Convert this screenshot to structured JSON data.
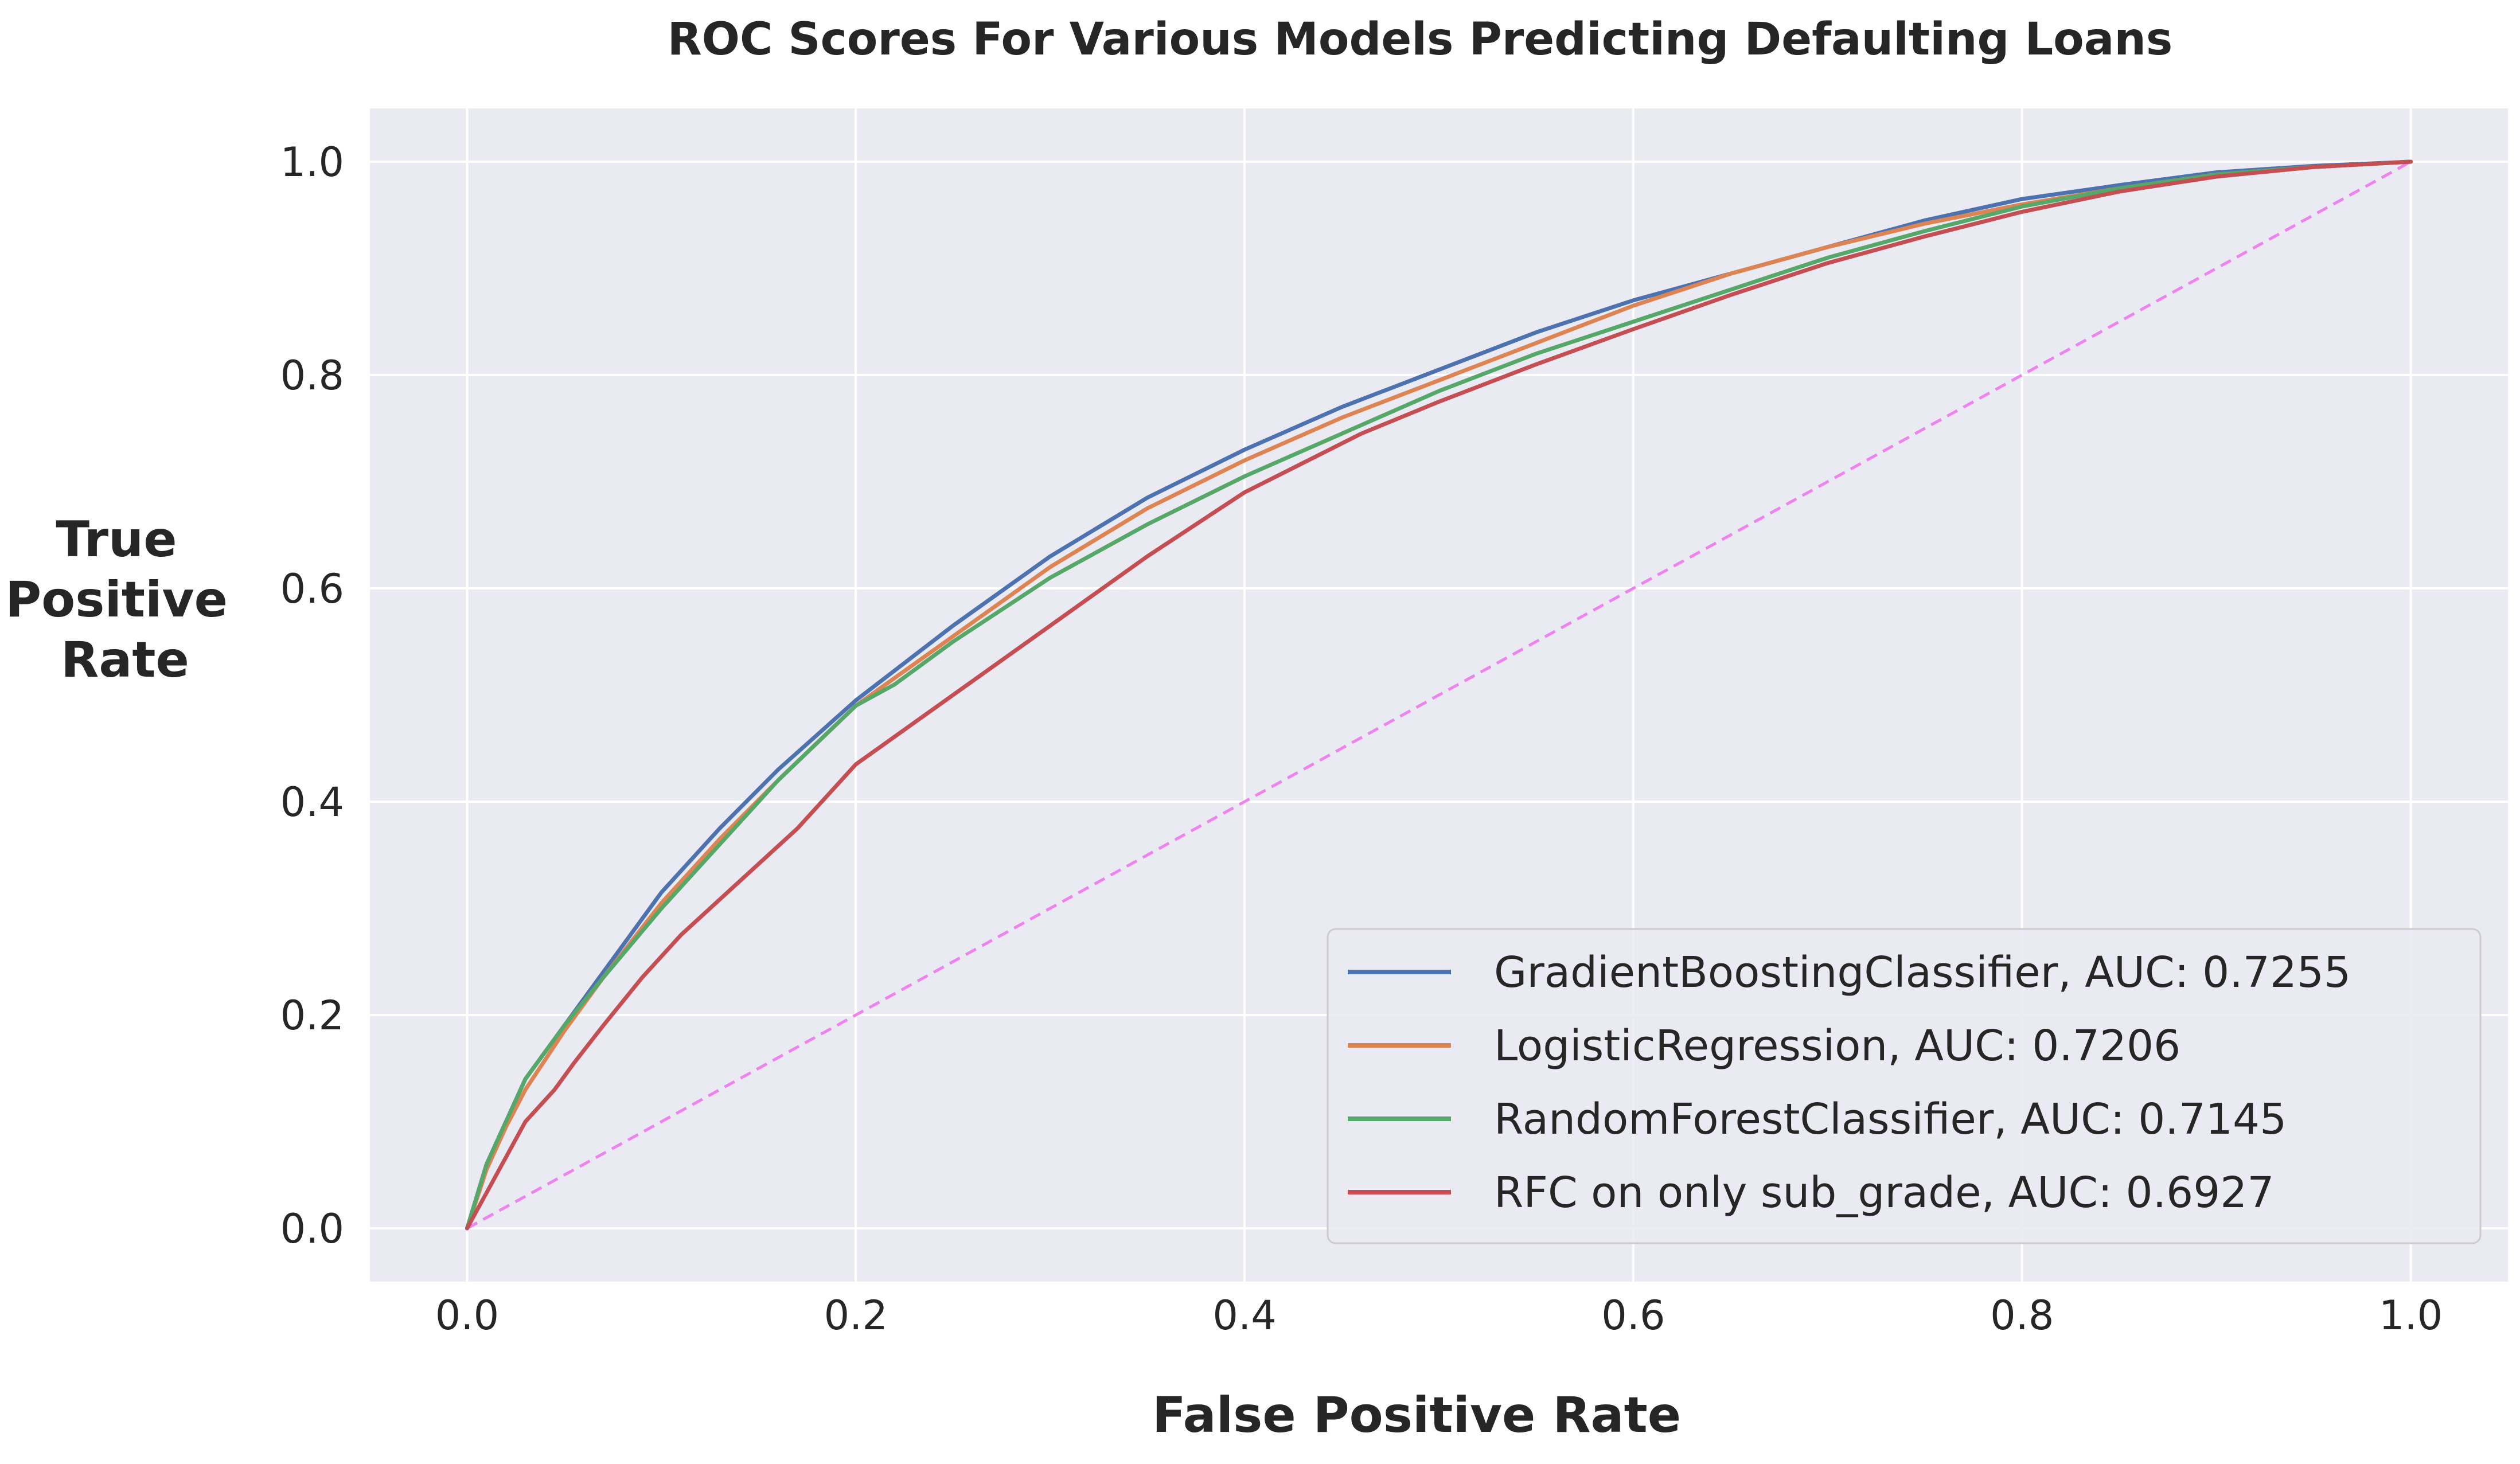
{
  "chart_data": {
    "type": "line",
    "title": "ROC Scores For Various Models Predicting Defaulting Loans",
    "xlabel": "False Positive Rate",
    "ylabel_lines": [
      "True",
      "Positive",
      "Rate"
    ],
    "xlim": [
      -0.05,
      1.05
    ],
    "ylim": [
      -0.05,
      1.05
    ],
    "xticks": [
      "0.0",
      "0.2",
      "0.4",
      "0.6",
      "0.8",
      "1.0"
    ],
    "yticks": [
      "0.0",
      "0.2",
      "0.4",
      "0.6",
      "0.8",
      "1.0"
    ],
    "grid": true,
    "legend_position": "lower-right",
    "colors": {
      "background": "#eaeaf2",
      "grid": "#ffffff",
      "text": "#262626",
      "diagonal": "#ee82ee"
    },
    "series": [
      {
        "name": "GradientBoostingClassifier, AUC: 0.7255",
        "color": "#4c72b0",
        "x": [
          0,
          0.01,
          0.02,
          0.03,
          0.05,
          0.07,
          0.1,
          0.13,
          0.16,
          0.2,
          0.25,
          0.3,
          0.35,
          0.4,
          0.45,
          0.5,
          0.55,
          0.6,
          0.65,
          0.7,
          0.75,
          0.8,
          0.85,
          0.9,
          0.95,
          1.0
        ],
        "y": [
          0,
          0.06,
          0.1,
          0.14,
          0.19,
          0.24,
          0.315,
          0.375,
          0.43,
          0.495,
          0.565,
          0.63,
          0.685,
          0.73,
          0.77,
          0.805,
          0.84,
          0.87,
          0.895,
          0.92,
          0.945,
          0.965,
          0.978,
          0.99,
          0.996,
          1.0
        ]
      },
      {
        "name": "LogisticRegression, AUC: 0.7206",
        "color": "#dd8452",
        "x": [
          0,
          0.01,
          0.02,
          0.03,
          0.05,
          0.07,
          0.1,
          0.13,
          0.16,
          0.2,
          0.25,
          0.3,
          0.35,
          0.4,
          0.45,
          0.5,
          0.55,
          0.6,
          0.65,
          0.7,
          0.75,
          0.8,
          0.85,
          0.9,
          0.95,
          1.0
        ],
        "y": [
          0,
          0.055,
          0.095,
          0.13,
          0.185,
          0.235,
          0.305,
          0.365,
          0.42,
          0.49,
          0.555,
          0.62,
          0.675,
          0.72,
          0.76,
          0.795,
          0.83,
          0.865,
          0.895,
          0.92,
          0.942,
          0.96,
          0.975,
          0.988,
          0.995,
          1.0
        ]
      },
      {
        "name": "RandomForestClassifier, AUC: 0.7145",
        "color": "#55a868",
        "x": [
          0,
          0.01,
          0.02,
          0.03,
          0.05,
          0.07,
          0.1,
          0.13,
          0.16,
          0.18,
          0.2,
          0.22,
          0.25,
          0.3,
          0.35,
          0.4,
          0.45,
          0.5,
          0.55,
          0.6,
          0.65,
          0.7,
          0.75,
          0.8,
          0.85,
          0.9,
          0.95,
          1.0
        ],
        "y": [
          0,
          0.06,
          0.1,
          0.14,
          0.19,
          0.235,
          0.3,
          0.36,
          0.42,
          0.455,
          0.49,
          0.51,
          0.55,
          0.61,
          0.66,
          0.705,
          0.745,
          0.785,
          0.82,
          0.85,
          0.88,
          0.91,
          0.935,
          0.958,
          0.975,
          0.988,
          0.995,
          1.0
        ]
      },
      {
        "name": "RFC on only sub_grade, AUC: 0.6927",
        "color": "#c44e52",
        "x": [
          0,
          0.015,
          0.03,
          0.045,
          0.055,
          0.07,
          0.09,
          0.11,
          0.14,
          0.17,
          0.2,
          0.25,
          0.3,
          0.35,
          0.4,
          0.46,
          0.5,
          0.55,
          0.6,
          0.65,
          0.7,
          0.75,
          0.8,
          0.85,
          0.9,
          0.95,
          1.0
        ],
        "y": [
          0,
          0.05,
          0.1,
          0.13,
          0.155,
          0.19,
          0.235,
          0.275,
          0.325,
          0.375,
          0.435,
          0.5,
          0.565,
          0.63,
          0.69,
          0.745,
          0.775,
          0.81,
          0.843,
          0.875,
          0.905,
          0.93,
          0.953,
          0.972,
          0.986,
          0.995,
          1.0
        ]
      }
    ],
    "reference_line": {
      "x": [
        0,
        1
      ],
      "y": [
        0,
        1
      ],
      "style": "dashed",
      "color": "#ee82ee"
    }
  }
}
